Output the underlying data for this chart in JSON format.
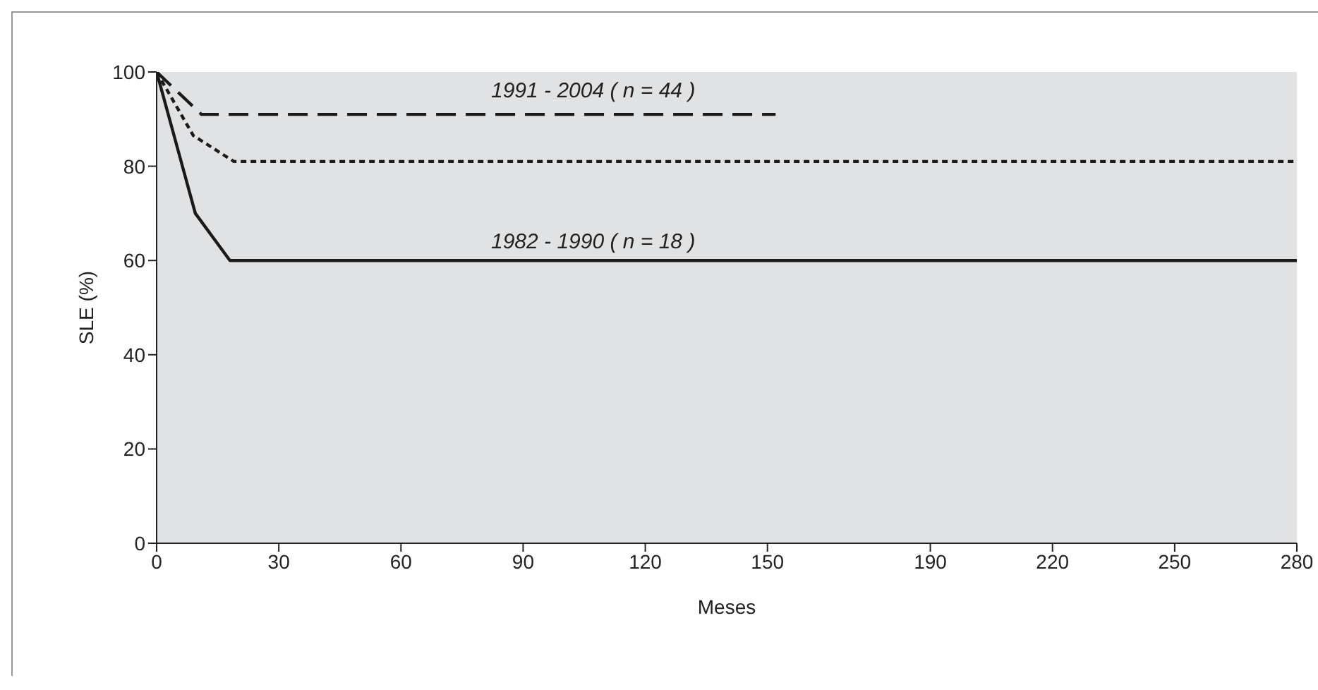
{
  "chart_data": {
    "type": "line",
    "xlabel": "Meses",
    "ylabel": "SLE (%)",
    "xlim": [
      0,
      280
    ],
    "ylim": [
      0,
      100
    ],
    "xticks": [
      0,
      30,
      60,
      90,
      120,
      150,
      190,
      220,
      250,
      280
    ],
    "yticks": [
      0,
      20,
      40,
      60,
      80,
      100
    ],
    "grid": false,
    "marker": "none",
    "series": [
      {
        "color": "#1a1a1a",
        "line_style": "dashed",
        "x": [
          0,
          11,
          152
        ],
        "values": [
          100,
          91,
          91
        ]
      },
      {
        "color": "#1a1a1a",
        "line_style": "dotted",
        "x": [
          0,
          9,
          19,
          280
        ],
        "values": [
          100,
          86.5,
          81,
          81
        ]
      },
      {
        "color": "#1a1a1a",
        "line_style": "solid",
        "x": [
          0,
          9.5,
          18,
          280
        ],
        "values": [
          100,
          70,
          60,
          60
        ]
      }
    ],
    "annotations": [
      "1991 - 2004 ( n = 44 )",
      "1982 - 1990 ( n = 18 )"
    ]
  }
}
